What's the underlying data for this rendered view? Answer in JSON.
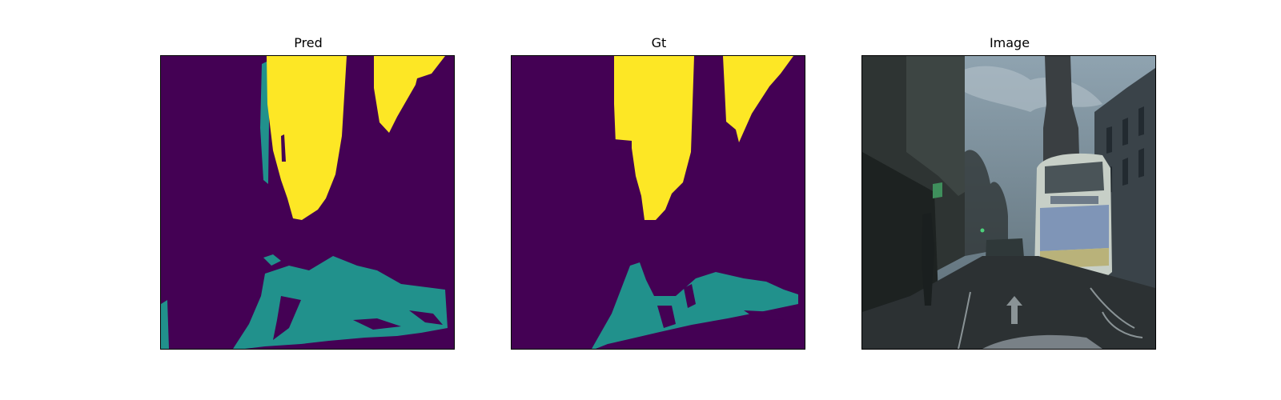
{
  "figure": {
    "panels": [
      {
        "title": "Pred"
      },
      {
        "title": "Gt"
      },
      {
        "title": "Image"
      }
    ]
  },
  "colormap": {
    "class_0": "#440154",
    "class_1": "#21918c",
    "class_2": "#fde725"
  }
}
